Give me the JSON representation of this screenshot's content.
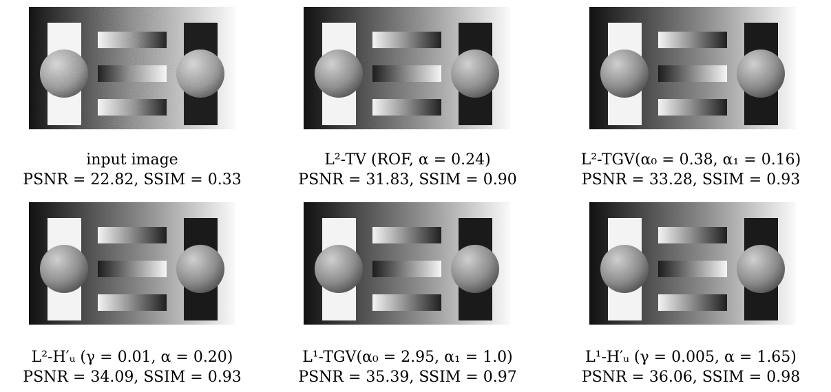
{
  "panels": [
    {
      "label": "input image",
      "metrics": "PSNR = 22.82, SSIM = 0.33",
      "noise": "heavy"
    },
    {
      "label": "L²-TV (ROF, α = 0.24)",
      "metrics": "PSNR = 31.83, SSIM = 0.90",
      "noise": "light"
    },
    {
      "label": "L²-TGV(α₀ = 0.38, α₁ = 0.16)",
      "metrics": "PSNR = 33.28, SSIM = 0.93",
      "noise": "none"
    },
    {
      "label": "L²-H′ᵤ (γ = 0.01, α = 0.20)",
      "metrics": "PSNR = 34.09, SSIM = 0.93",
      "noise": "none"
    },
    {
      "label": "L¹-TGV(α₀ = 2.95, α₁ = 1.0)",
      "metrics": "PSNR = 35.39, SSIM = 0.97",
      "noise": "none"
    },
    {
      "label": "L¹-H′ᵤ (γ = 0.005, α = 1.65)",
      "metrics": "PSNR = 36.06, SSIM = 0.98",
      "noise": "none"
    }
  ]
}
